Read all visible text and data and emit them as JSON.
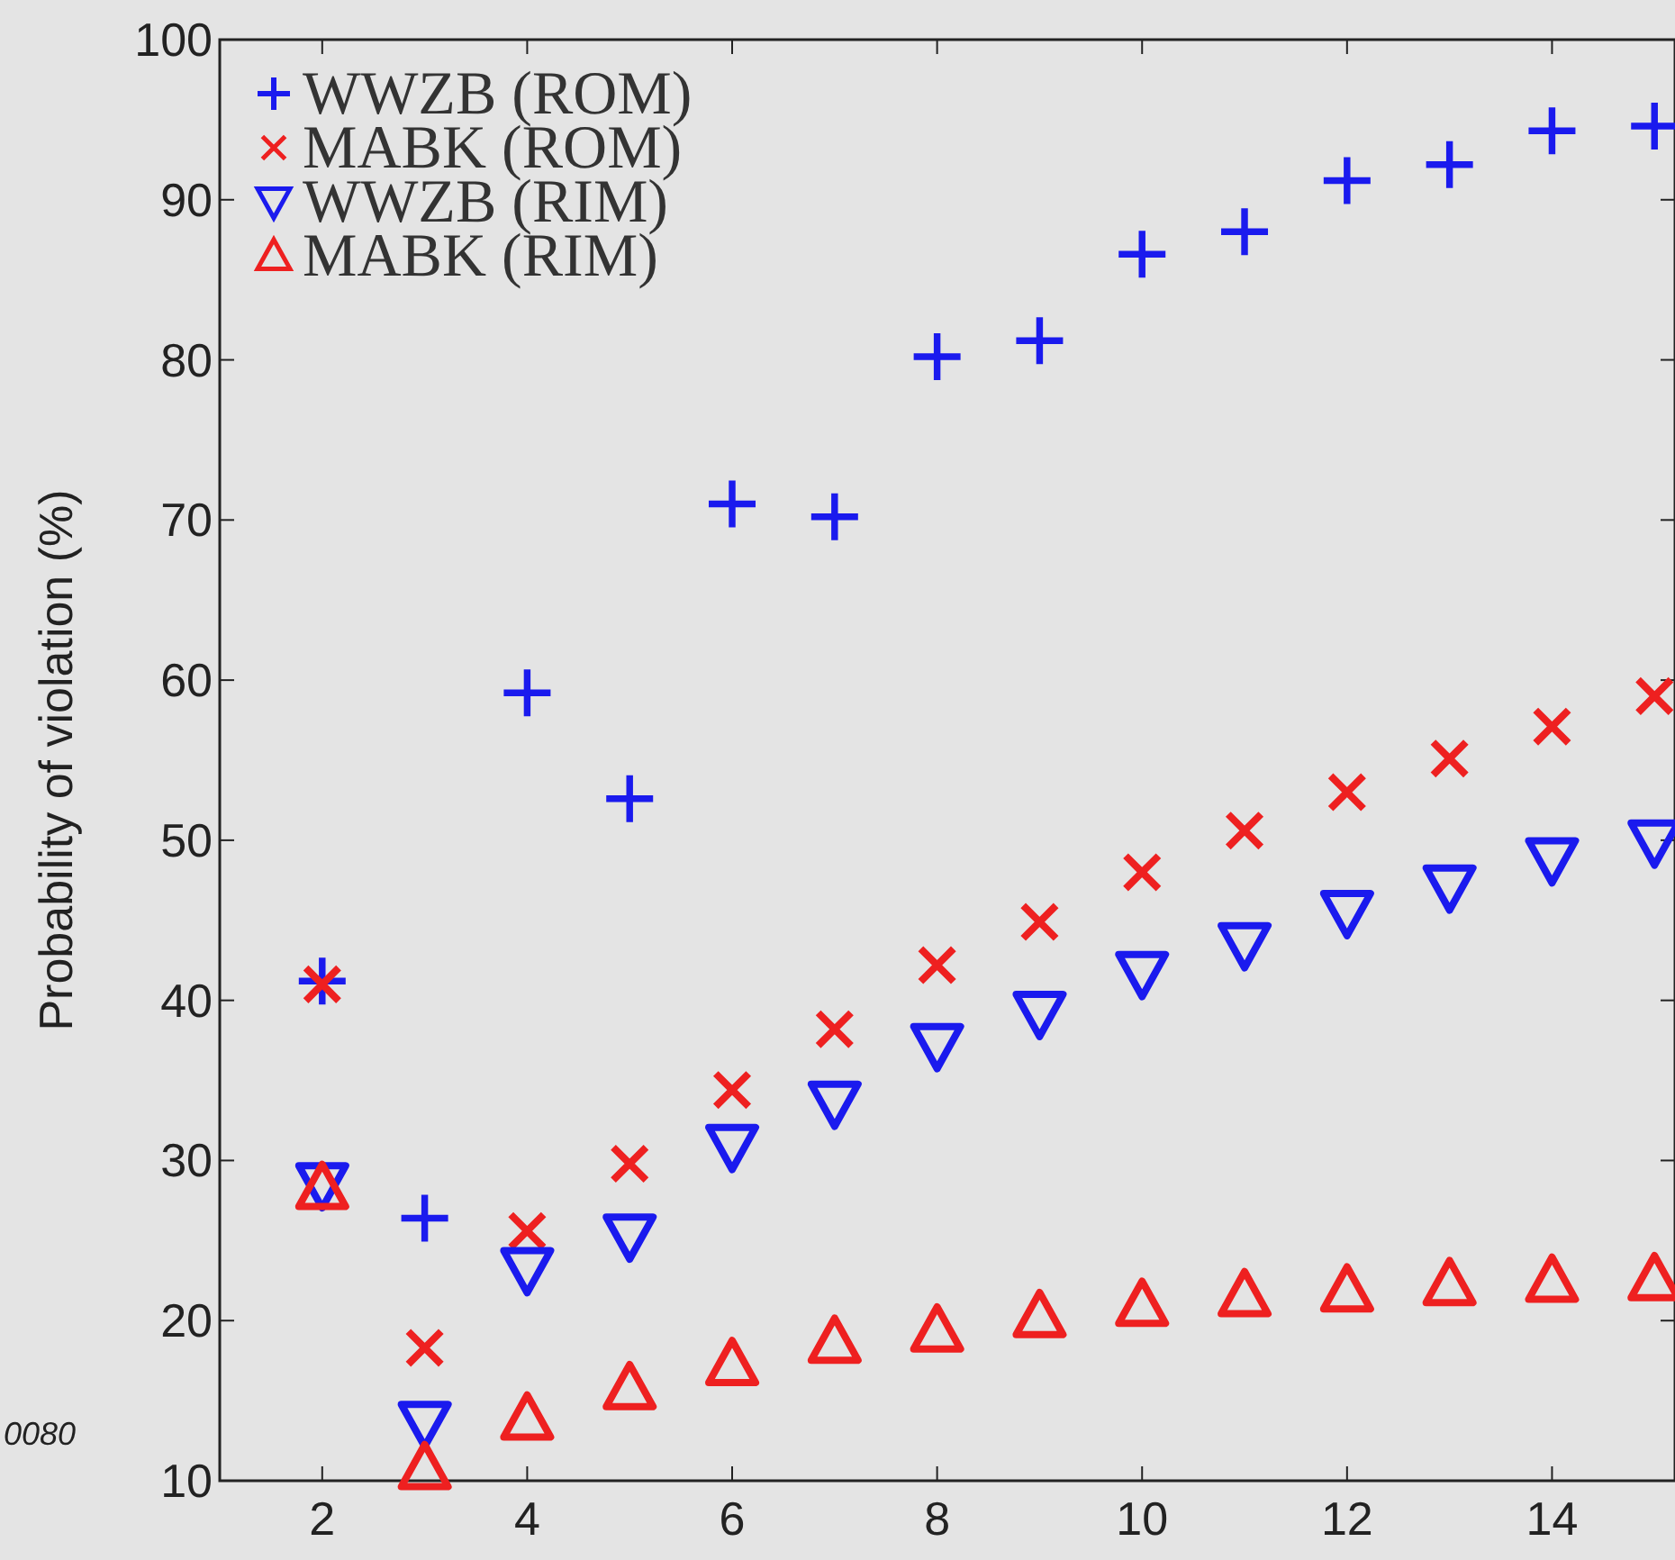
{
  "chart_data": {
    "type": "scatter",
    "ylabel": "Probability of violation (%)",
    "x": [
      2,
      3,
      4,
      5,
      6,
      7,
      8,
      9,
      10,
      11,
      12,
      13,
      14,
      15
    ],
    "xlim": [
      1,
      15.2
    ],
    "xticks": [
      2,
      4,
      6,
      8,
      10,
      12,
      14
    ],
    "ylim": [
      10,
      100
    ],
    "yticks": [
      10,
      20,
      30,
      40,
      50,
      60,
      70,
      80,
      90,
      100
    ],
    "grid": false,
    "legend": "top left",
    "annotations": [
      "0080"
    ],
    "series": [
      {
        "name": "WWZB (ROM)",
        "color": "#1a1aee",
        "values": [
          41.2,
          26.4,
          59.2,
          52.6,
          71,
          70.2,
          80.2,
          81.2,
          86.6,
          88,
          91.2,
          92.2,
          94.3,
          94.6
        ]
      },
      {
        "name": "MABK (ROM)",
        "color": "#ee2020",
        "marker": "cross",
        "values": [
          41,
          18.3,
          25.6,
          29.8,
          34.4,
          38.2,
          42.2,
          44.9,
          48,
          50.6,
          53,
          55.1,
          57.1,
          59
        ]
      },
      {
        "name": "WWZB (RIM)",
        "color": "#1a1aee",
        "marker": "triangle-down",
        "values": [
          28.5,
          13.6,
          23.2,
          25.3,
          30.9,
          33.6,
          37.2,
          39.2,
          41.7,
          43.5,
          45.5,
          47.1,
          48.8,
          49.9
        ]
      },
      {
        "name": "MABK (RIM)",
        "color": "#ee2020",
        "marker": "triangle",
        "values": [
          28.3,
          10.8,
          13.9,
          15.8,
          17.3,
          18.7,
          19.4,
          20.3,
          21,
          21.6,
          21.9,
          22.3,
          22.5,
          22.6
        ]
      }
    ]
  }
}
